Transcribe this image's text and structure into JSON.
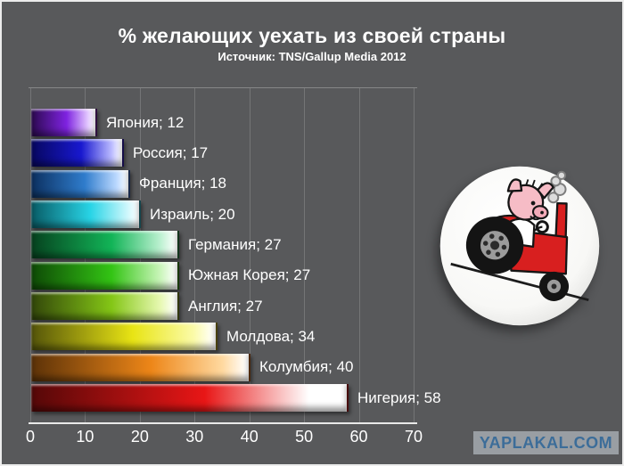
{
  "watermark": "YAPLAKAL.COM",
  "illustration": {
    "name": "pig-riding-red-tractor-badge"
  },
  "colors": {
    "background": "#58595b",
    "text": "#ffffff",
    "axis_line": "#e9e9e9",
    "gridline": "rgba(255,255,255,0.17)",
    "watermark_text": "#3c6d99",
    "watermark_background": "rgba(172,178,183,0.78)",
    "badge_tractor_red": "#d81f1f",
    "badge_pig_pink": "#f6bcc6"
  },
  "chart_data": {
    "type": "bar",
    "orientation": "horizontal",
    "title": "% желающих уехать из своей страны",
    "subtitle": "Источник: TNS/Gallup Media 2012",
    "xlabel": "",
    "ylabel": "",
    "xlim": [
      0,
      70
    ],
    "x_ticks": [
      0,
      10,
      20,
      30,
      40,
      50,
      60,
      70
    ],
    "grid": true,
    "legend": false,
    "categories": [
      "Япония",
      "Россия",
      "Франция",
      "Израиль",
      "Германия",
      "Южная Корея",
      "Англия",
      "Молдова",
      "Колумбия",
      "Нигерия"
    ],
    "values": [
      12,
      17,
      18,
      20,
      27,
      27,
      27,
      34,
      40,
      58
    ],
    "labels": [
      "Япония; 12",
      "Россия; 17",
      "Франция; 18",
      "Израиль; 20",
      "Германия; 27",
      "Южная Корея; 27",
      "Англия; 27",
      "Молдова; 34",
      "Колумбия; 40",
      "Нигерия; 58"
    ],
    "bar_colors": [
      {
        "dark": "#2c0a50",
        "main": "#7e22e0",
        "light": "#e2c6ff"
      },
      {
        "dark": "#070760",
        "main": "#1818cf",
        "light": "#b8b8ff"
      },
      {
        "dark": "#0c3060",
        "main": "#2f7ccc",
        "light": "#bcd9ff"
      },
      {
        "dark": "#085c66",
        "main": "#28d4e6",
        "light": "#c8f6fb"
      },
      {
        "dark": "#06421f",
        "main": "#12b457",
        "light": "#baf0cf"
      },
      {
        "dark": "#0e4a06",
        "main": "#33c414",
        "light": "#c8f5b8"
      },
      {
        "dark": "#33470a",
        "main": "#84c616",
        "light": "#e6f8b0"
      },
      {
        "dark": "#55550a",
        "main": "#e8e414",
        "light": "#fbfba8"
      },
      {
        "dark": "#5c3208",
        "main": "#ed8618",
        "light": "#ffd9a0"
      },
      {
        "dark": "#550808",
        "main": "#e81616",
        "light": "#ffffff"
      }
    ]
  }
}
